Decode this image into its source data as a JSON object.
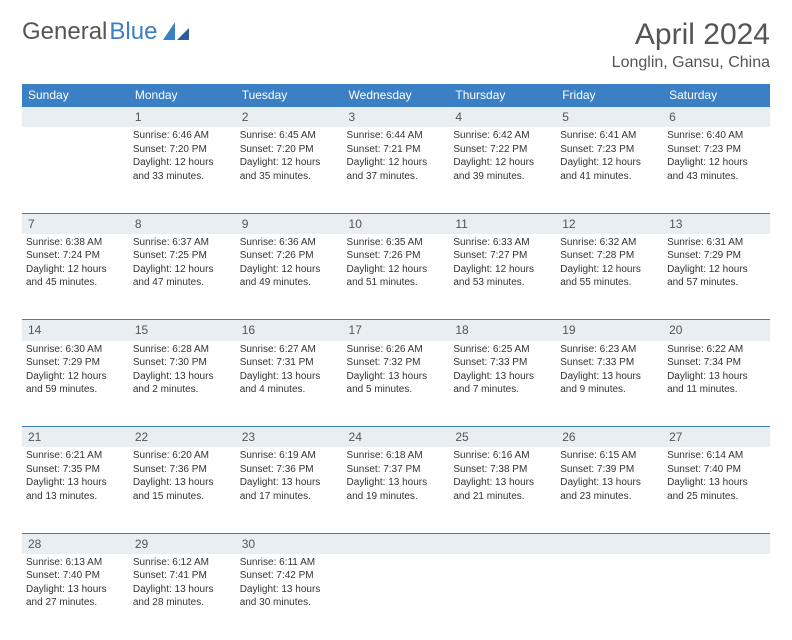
{
  "logo": {
    "text1": "General",
    "text2": "Blue",
    "icon_color": "#3b7fc4"
  },
  "title": "April 2024",
  "location": "Longlin, Gansu, China",
  "colors": {
    "header_bg": "#3b7fc4",
    "header_text": "#ffffff",
    "daynum_bg": "#e9eef3",
    "row_border": "#3b7fc4",
    "body_text": "#333333",
    "title_text": "#555555"
  },
  "weekdays": [
    "Sunday",
    "Monday",
    "Tuesday",
    "Wednesday",
    "Thursday",
    "Friday",
    "Saturday"
  ],
  "weeks": [
    {
      "nums": [
        "",
        "1",
        "2",
        "3",
        "4",
        "5",
        "6"
      ],
      "cells": [
        [],
        [
          "Sunrise: 6:46 AM",
          "Sunset: 7:20 PM",
          "Daylight: 12 hours",
          "and 33 minutes."
        ],
        [
          "Sunrise: 6:45 AM",
          "Sunset: 7:20 PM",
          "Daylight: 12 hours",
          "and 35 minutes."
        ],
        [
          "Sunrise: 6:44 AM",
          "Sunset: 7:21 PM",
          "Daylight: 12 hours",
          "and 37 minutes."
        ],
        [
          "Sunrise: 6:42 AM",
          "Sunset: 7:22 PM",
          "Daylight: 12 hours",
          "and 39 minutes."
        ],
        [
          "Sunrise: 6:41 AM",
          "Sunset: 7:23 PM",
          "Daylight: 12 hours",
          "and 41 minutes."
        ],
        [
          "Sunrise: 6:40 AM",
          "Sunset: 7:23 PM",
          "Daylight: 12 hours",
          "and 43 minutes."
        ]
      ]
    },
    {
      "nums": [
        "7",
        "8",
        "9",
        "10",
        "11",
        "12",
        "13"
      ],
      "cells": [
        [
          "Sunrise: 6:38 AM",
          "Sunset: 7:24 PM",
          "Daylight: 12 hours",
          "and 45 minutes."
        ],
        [
          "Sunrise: 6:37 AM",
          "Sunset: 7:25 PM",
          "Daylight: 12 hours",
          "and 47 minutes."
        ],
        [
          "Sunrise: 6:36 AM",
          "Sunset: 7:26 PM",
          "Daylight: 12 hours",
          "and 49 minutes."
        ],
        [
          "Sunrise: 6:35 AM",
          "Sunset: 7:26 PM",
          "Daylight: 12 hours",
          "and 51 minutes."
        ],
        [
          "Sunrise: 6:33 AM",
          "Sunset: 7:27 PM",
          "Daylight: 12 hours",
          "and 53 minutes."
        ],
        [
          "Sunrise: 6:32 AM",
          "Sunset: 7:28 PM",
          "Daylight: 12 hours",
          "and 55 minutes."
        ],
        [
          "Sunrise: 6:31 AM",
          "Sunset: 7:29 PM",
          "Daylight: 12 hours",
          "and 57 minutes."
        ]
      ]
    },
    {
      "nums": [
        "14",
        "15",
        "16",
        "17",
        "18",
        "19",
        "20"
      ],
      "cells": [
        [
          "Sunrise: 6:30 AM",
          "Sunset: 7:29 PM",
          "Daylight: 12 hours",
          "and 59 minutes."
        ],
        [
          "Sunrise: 6:28 AM",
          "Sunset: 7:30 PM",
          "Daylight: 13 hours",
          "and 2 minutes."
        ],
        [
          "Sunrise: 6:27 AM",
          "Sunset: 7:31 PM",
          "Daylight: 13 hours",
          "and 4 minutes."
        ],
        [
          "Sunrise: 6:26 AM",
          "Sunset: 7:32 PM",
          "Daylight: 13 hours",
          "and 5 minutes."
        ],
        [
          "Sunrise: 6:25 AM",
          "Sunset: 7:33 PM",
          "Daylight: 13 hours",
          "and 7 minutes."
        ],
        [
          "Sunrise: 6:23 AM",
          "Sunset: 7:33 PM",
          "Daylight: 13 hours",
          "and 9 minutes."
        ],
        [
          "Sunrise: 6:22 AM",
          "Sunset: 7:34 PM",
          "Daylight: 13 hours",
          "and 11 minutes."
        ]
      ]
    },
    {
      "nums": [
        "21",
        "22",
        "23",
        "24",
        "25",
        "26",
        "27"
      ],
      "cells": [
        [
          "Sunrise: 6:21 AM",
          "Sunset: 7:35 PM",
          "Daylight: 13 hours",
          "and 13 minutes."
        ],
        [
          "Sunrise: 6:20 AM",
          "Sunset: 7:36 PM",
          "Daylight: 13 hours",
          "and 15 minutes."
        ],
        [
          "Sunrise: 6:19 AM",
          "Sunset: 7:36 PM",
          "Daylight: 13 hours",
          "and 17 minutes."
        ],
        [
          "Sunrise: 6:18 AM",
          "Sunset: 7:37 PM",
          "Daylight: 13 hours",
          "and 19 minutes."
        ],
        [
          "Sunrise: 6:16 AM",
          "Sunset: 7:38 PM",
          "Daylight: 13 hours",
          "and 21 minutes."
        ],
        [
          "Sunrise: 6:15 AM",
          "Sunset: 7:39 PM",
          "Daylight: 13 hours",
          "and 23 minutes."
        ],
        [
          "Sunrise: 6:14 AM",
          "Sunset: 7:40 PM",
          "Daylight: 13 hours",
          "and 25 minutes."
        ]
      ]
    },
    {
      "nums": [
        "28",
        "29",
        "30",
        "",
        "",
        "",
        ""
      ],
      "cells": [
        [
          "Sunrise: 6:13 AM",
          "Sunset: 7:40 PM",
          "Daylight: 13 hours",
          "and 27 minutes."
        ],
        [
          "Sunrise: 6:12 AM",
          "Sunset: 7:41 PM",
          "Daylight: 13 hours",
          "and 28 minutes."
        ],
        [
          "Sunrise: 6:11 AM",
          "Sunset: 7:42 PM",
          "Daylight: 13 hours",
          "and 30 minutes."
        ],
        [],
        [],
        [],
        []
      ]
    }
  ]
}
